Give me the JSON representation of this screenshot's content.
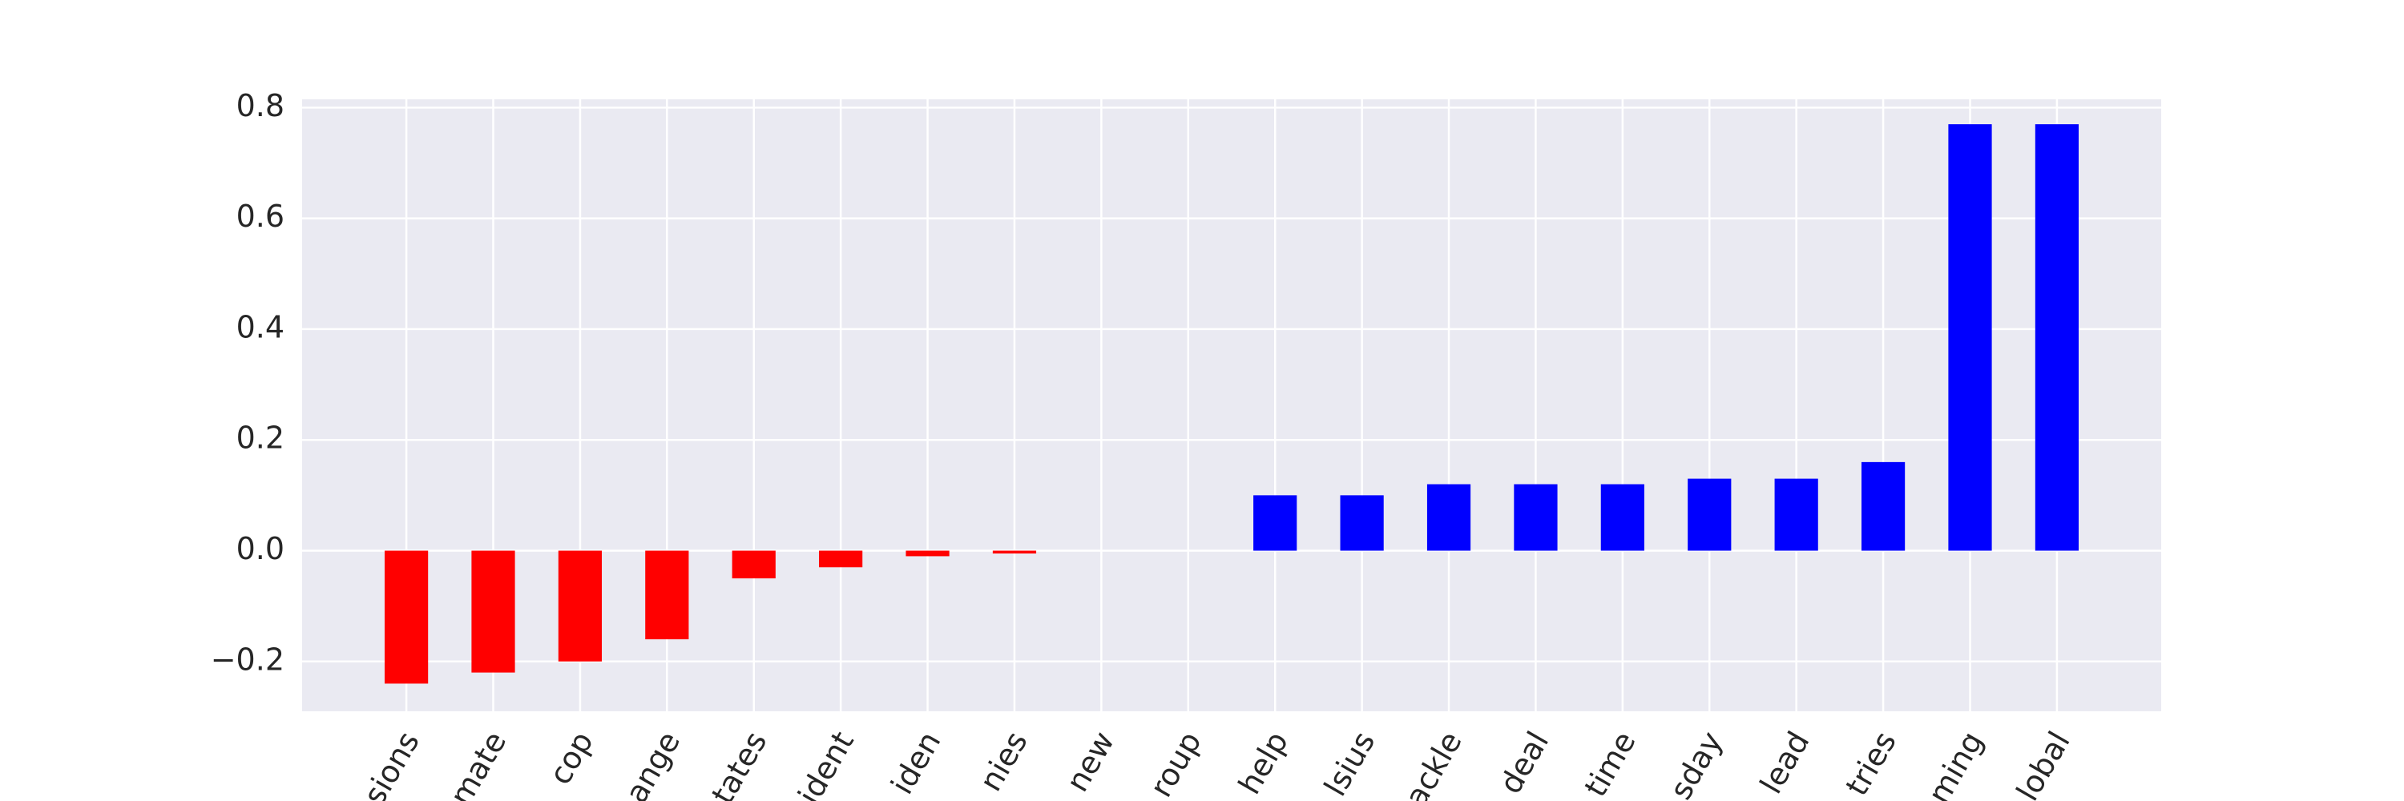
{
  "chart_data": {
    "type": "bar",
    "categories": [
      "sions",
      "mate",
      "cop",
      "ange",
      "tates",
      "ident",
      "iden",
      "nies",
      "new",
      "roup",
      "help",
      "lsius",
      "ackle",
      "deal",
      "time",
      "sday",
      "lead",
      "tries",
      "ming",
      "lobal"
    ],
    "values": [
      -0.24,
      -0.22,
      -0.2,
      -0.16,
      -0.05,
      -0.03,
      -0.01,
      -0.005,
      0,
      0,
      0.1,
      0.1,
      0.12,
      0.12,
      0.12,
      0.13,
      0.13,
      0.16,
      0.77,
      0.77
    ],
    "colors": [
      "#ff0000",
      "#ff0000",
      "#ff0000",
      "#ff0000",
      "#ff0000",
      "#ff0000",
      "#ff0000",
      "#ff0000",
      "#ff0000",
      "#ff0000",
      "#0000ff",
      "#0000ff",
      "#0000ff",
      "#0000ff",
      "#0000ff",
      "#0000ff",
      "#0000ff",
      "#0000ff",
      "#0000ff",
      "#0000ff"
    ],
    "ylim": [
      -0.29,
      0.815
    ],
    "yticks": [
      {
        "value": -0.2,
        "label": "−0.2"
      },
      {
        "value": 0,
        "label": "0.0"
      },
      {
        "value": 0.2,
        "label": "0.2"
      },
      {
        "value": 0.4,
        "label": "0.4"
      },
      {
        "value": 0.6,
        "label": "0.6"
      },
      {
        "value": 0.8,
        "label": "0.8"
      }
    ],
    "grid": true
  }
}
